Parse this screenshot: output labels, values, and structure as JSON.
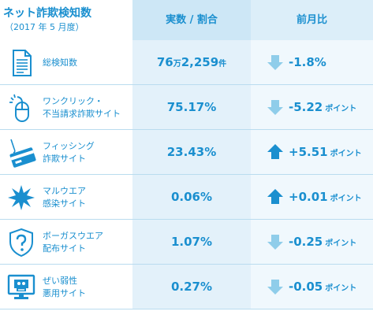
{
  "header": {
    "title": "ネット詐欺検知数",
    "subtitle": "（2017 年 5 月度）",
    "value_col": "実数 / 割合",
    "change_col": "前月比"
  },
  "colors": {
    "accent": "#1a8fcf",
    "arrow_up": "#1a8fcf",
    "arrow_down": "#8fcdea"
  },
  "rows": [
    {
      "icon": "document-icon",
      "label1": "総検知数",
      "label2": "",
      "value": "76",
      "value_unit1": "万",
      "value2": "2,259",
      "value_unit2": "件",
      "direction": "down",
      "change": "-1.8%",
      "change_unit": ""
    },
    {
      "icon": "mouse-click-icon",
      "label1": "ワンクリック・",
      "label2": "不当請求詐欺サイト",
      "value": "75.17%",
      "value_unit1": "",
      "value2": "",
      "value_unit2": "",
      "direction": "down",
      "change": "-5.22",
      "change_unit": "ポイント"
    },
    {
      "icon": "fishing-card-icon",
      "label1": "フィッシング",
      "label2": "詐欺サイト",
      "value": "23.43%",
      "value_unit1": "",
      "value2": "",
      "value_unit2": "",
      "direction": "up",
      "change": "+5.51",
      "change_unit": "ポイント"
    },
    {
      "icon": "malware-burst-icon",
      "label1": "マルウエア",
      "label2": "感染サイト",
      "value": "0.06%",
      "value_unit1": "",
      "value2": "",
      "value_unit2": "",
      "direction": "up",
      "change": "+0.01",
      "change_unit": "ポイント"
    },
    {
      "icon": "question-shield-icon",
      "label1": "ボーガスウエア",
      "label2": "配布サイト",
      "value": "1.07%",
      "value_unit1": "",
      "value2": "",
      "value_unit2": "",
      "direction": "down",
      "change": "-0.25",
      "change_unit": "ポイント"
    },
    {
      "icon": "vulnerable-monitor-icon",
      "label1": "ぜい弱性",
      "label2": "悪用サイト",
      "value": "0.27%",
      "value_unit1": "",
      "value2": "",
      "value_unit2": "",
      "direction": "down",
      "change": "-0.05",
      "change_unit": "ポイント"
    }
  ]
}
